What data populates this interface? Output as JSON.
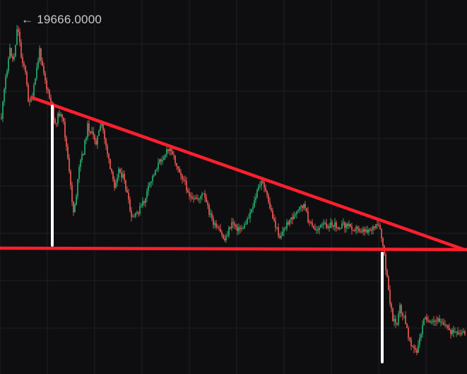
{
  "chart_data": {
    "type": "candlestick",
    "high_marker": {
      "arrow": "←",
      "value": "19666.0000"
    },
    "colors": {
      "background": "#0e0e10",
      "grid": "#1f2023",
      "up": "#26a269",
      "down": "#e0534f",
      "trendline": "#ff1f2e",
      "measure": "#ffffff"
    },
    "grid": true,
    "annotations": [
      {
        "type": "descending-resistance-line",
        "color": "red"
      },
      {
        "type": "horizontal-support-line",
        "color": "red"
      },
      {
        "type": "vertical-measure-line",
        "color": "white"
      },
      {
        "type": "vertical-measure-line",
        "color": "white"
      }
    ]
  }
}
